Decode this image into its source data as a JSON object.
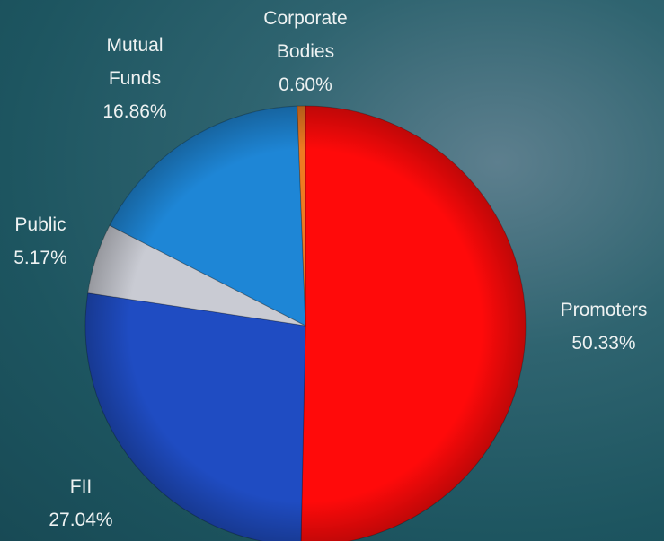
{
  "chart_data": {
    "type": "pie",
    "categories": [
      "Promoters",
      "FII",
      "Public",
      "Mutual Funds",
      "Corporate Bodies"
    ],
    "values": [
      50.33,
      27.04,
      5.17,
      16.86,
      0.6
    ],
    "value_labels": [
      "50.33%",
      "27.04%",
      "5.17%",
      "16.86%",
      "0.60%"
    ],
    "colors": [
      "#ff0a0a",
      "#1f4cc2",
      "#c9cbd3",
      "#1e86d6",
      "#ee7a22"
    ]
  }
}
